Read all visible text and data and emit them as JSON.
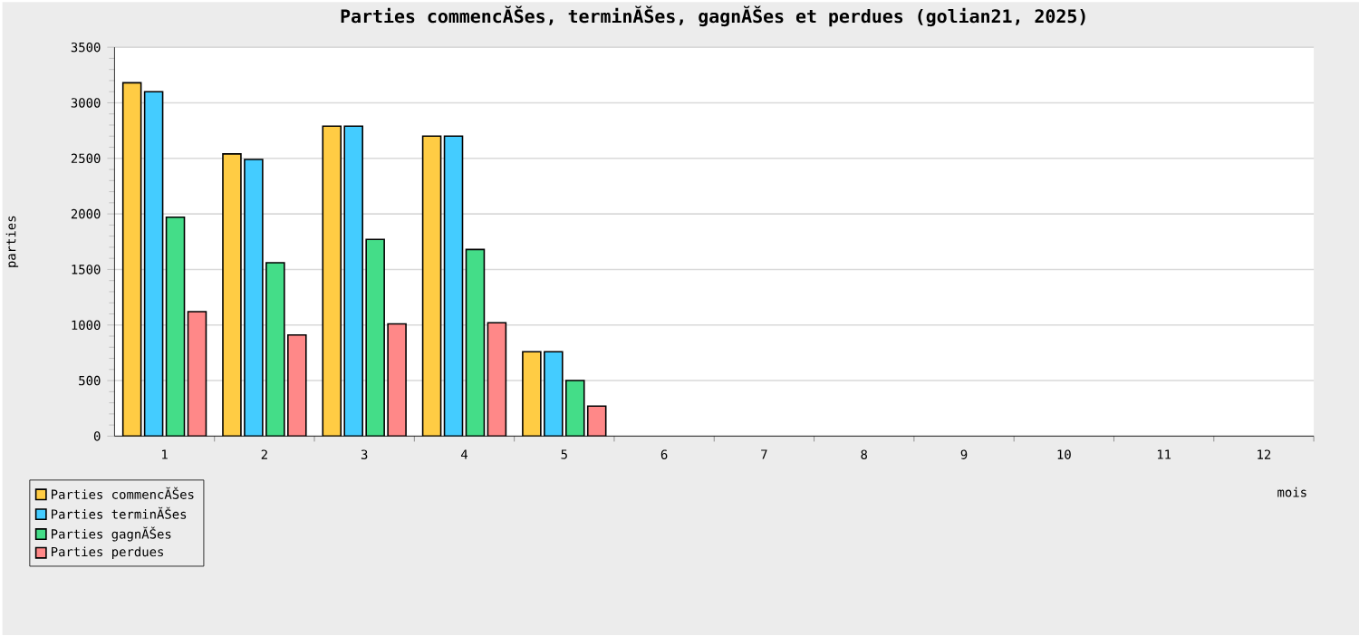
{
  "chart_data": {
    "type": "bar",
    "title": "Parties commencĂŠes, terminĂŠes, gagnĂŠes et perdues (golian21, 2025)",
    "xlabel": "mois",
    "ylabel": "parties",
    "categories": [
      "1",
      "2",
      "3",
      "4",
      "5",
      "6",
      "7",
      "8",
      "9",
      "10",
      "11",
      "12"
    ],
    "series": [
      {
        "name": "Parties commencĂŠes",
        "color": "#ffcc44",
        "values": [
          3180,
          2540,
          2790,
          2700,
          760,
          null,
          null,
          null,
          null,
          null,
          null,
          null
        ]
      },
      {
        "name": "Parties terminĂŠes",
        "color": "#44ccff",
        "values": [
          3100,
          2490,
          2790,
          2700,
          760,
          null,
          null,
          null,
          null,
          null,
          null,
          null
        ]
      },
      {
        "name": "Parties gagnĂŠes",
        "color": "#44dd88",
        "values": [
          1970,
          1560,
          1770,
          1680,
          500,
          null,
          null,
          null,
          null,
          null,
          null,
          null
        ]
      },
      {
        "name": "Parties perdues",
        "color": "#ff8888",
        "values": [
          1120,
          910,
          1010,
          1020,
          270,
          null,
          null,
          null,
          null,
          null,
          null,
          null
        ]
      }
    ],
    "ylim": [
      0,
      3500
    ],
    "yticks": [
      0,
      500,
      1000,
      1500,
      2000,
      2500,
      3000,
      3500
    ],
    "grid": "y",
    "legend": "bottom left"
  }
}
